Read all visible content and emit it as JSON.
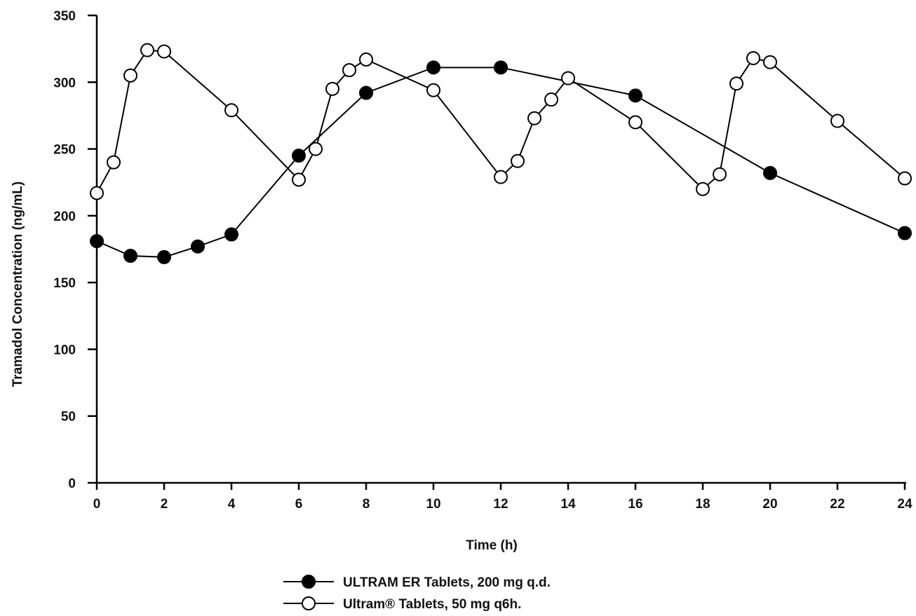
{
  "chart_data": {
    "type": "line",
    "title": "",
    "xlabel": "Time (h)",
    "ylabel": "Tramadol Concentration (ng/mL)",
    "xlim": [
      0,
      24
    ],
    "ylim": [
      0,
      350
    ],
    "x_ticks": [
      0,
      2,
      4,
      6,
      8,
      10,
      12,
      14,
      16,
      18,
      20,
      22,
      24
    ],
    "y_ticks": [
      0,
      50,
      100,
      150,
      200,
      250,
      300,
      350
    ],
    "grid": false,
    "legend_position": "bottom-center",
    "series": [
      {
        "name": "ULTRAM ER Tablets, 200 mg q.d.",
        "marker": "filled-circle",
        "color": "#000000",
        "x": [
          0,
          1,
          2,
          3,
          4,
          6,
          8,
          10,
          12,
          16,
          20,
          24
        ],
        "y": [
          181,
          170,
          169,
          177,
          186,
          245,
          292,
          311,
          311,
          290,
          232,
          187
        ]
      },
      {
        "name": "Ultram® Tablets, 50 mg q6h.",
        "marker": "open-circle",
        "color": "#000000",
        "x": [
          0,
          0.5,
          1,
          1.5,
          2,
          4,
          6,
          6.5,
          7,
          7.5,
          8,
          10,
          12,
          12.5,
          13,
          13.5,
          14,
          16,
          18,
          18.5,
          19,
          19.5,
          20,
          22,
          24
        ],
        "y": [
          217,
          240,
          305,
          324,
          323,
          279,
          227,
          250,
          295,
          309,
          317,
          294,
          229,
          241,
          273,
          287,
          303,
          270,
          220,
          231,
          299,
          318,
          315,
          271,
          228
        ]
      }
    ]
  }
}
